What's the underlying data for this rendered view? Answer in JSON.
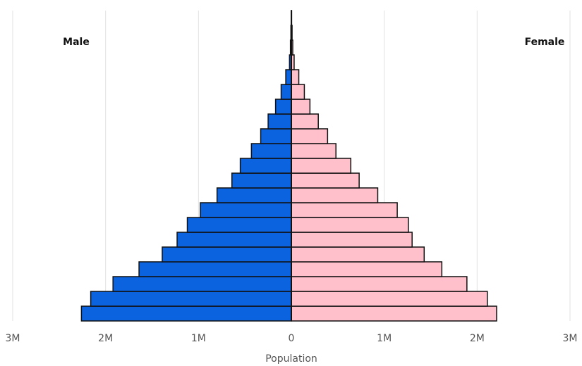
{
  "chart_data": {
    "type": "pyramid",
    "xlabel": "Population",
    "categories": [
      null,
      null,
      null,
      null,
      null,
      null,
      null,
      null,
      null,
      null,
      null,
      null,
      null,
      null,
      null,
      null,
      null,
      null,
      null,
      null,
      null
    ],
    "series": [
      {
        "name": "Male",
        "color": "#0b63e0",
        "values": [
          -2260000,
          -2160000,
          -1920000,
          -1640000,
          -1390000,
          -1230000,
          -1120000,
          -980000,
          -800000,
          -640000,
          -550000,
          -430000,
          -330000,
          -250000,
          -170000,
          -110000,
          -60000,
          -20000,
          -10000,
          -5000,
          -2000
        ]
      },
      {
        "name": "Female",
        "color": "#ffc0cb",
        "values": [
          2210000,
          2110000,
          1890000,
          1620000,
          1430000,
          1300000,
          1260000,
          1140000,
          930000,
          730000,
          640000,
          480000,
          390000,
          290000,
          200000,
          140000,
          80000,
          30000,
          15000,
          8000,
          3000
        ]
      }
    ],
    "xlim": [
      -3000000,
      3000000
    ],
    "xticks": [
      {
        "value": -3000000,
        "label": "3M"
      },
      {
        "value": -2000000,
        "label": "2M"
      },
      {
        "value": -1000000,
        "label": "1M"
      },
      0,
      {
        "value": 1000000,
        "label": "1M"
      },
      {
        "value": 2000000,
        "label": "2M"
      },
      {
        "value": 3000000,
        "label": "3M"
      }
    ],
    "grid": true
  }
}
